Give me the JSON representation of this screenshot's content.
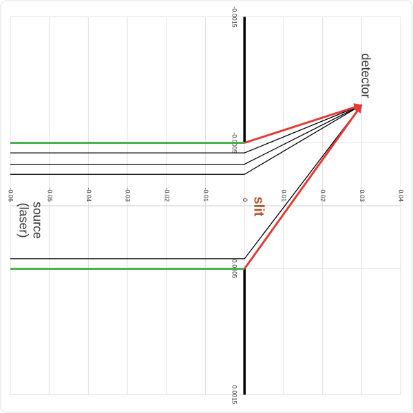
{
  "chart_data": {
    "type": "line",
    "xlim": [
      -0.0015,
      0.0015
    ],
    "xticks": [
      -0.0015,
      -0.0005,
      0.0005,
      0.0015
    ],
    "ylim": [
      -0.06,
      0.04
    ],
    "yticks": [
      -0.06,
      -0.05,
      -0.04,
      -0.03,
      -0.02,
      -0.01,
      0,
      0.01,
      0.02,
      0.03,
      0.04
    ],
    "grid": true,
    "annotations": {
      "detector": "detector",
      "slit": "slit",
      "source": [
        "source",
        "(laser)"
      ]
    },
    "series": [
      {
        "color": "#000000",
        "width": 3.5,
        "arrow": false,
        "x": [
          -0.0015,
          -0.0005
        ],
        "values": [
          0,
          0
        ]
      },
      {
        "color": "#000000",
        "width": 3.5,
        "arrow": false,
        "x": [
          0.0005,
          0.0015
        ],
        "values": [
          0,
          0
        ]
      },
      {
        "color": "#000000",
        "width": 1.3,
        "arrow": true,
        "x": [
          -0.00042,
          -0.00042,
          -0.0008
        ],
        "values": [
          -0.06,
          0,
          0.03
        ]
      },
      {
        "color": "#000000",
        "width": 1.3,
        "arrow": true,
        "x": [
          -0.00033,
          -0.00033,
          -0.0008
        ],
        "values": [
          -0.06,
          0,
          0.03
        ]
      },
      {
        "color": "#000000",
        "width": 1.3,
        "arrow": true,
        "x": [
          -0.00025,
          -0.00025,
          -0.0008
        ],
        "values": [
          -0.06,
          0,
          0.03
        ]
      },
      {
        "color": "#000000",
        "width": 1.3,
        "arrow": true,
        "x": [
          0.00042,
          0.00042,
          -0.0008
        ],
        "values": [
          -0.06,
          0,
          0.03
        ]
      },
      {
        "color": "#4caf50",
        "width": 3,
        "arrow": false,
        "x": [
          -0.0005,
          -0.0005
        ],
        "values": [
          -0.06,
          0
        ]
      },
      {
        "color": "#4caf50",
        "width": 3,
        "arrow": false,
        "x": [
          0.0005,
          0.0005
        ],
        "values": [
          -0.06,
          0
        ]
      },
      {
        "color": "#e53935",
        "width": 3,
        "arrow": true,
        "x": [
          -0.0005,
          -0.0008
        ],
        "values": [
          0,
          0.03
        ]
      },
      {
        "color": "#e53935",
        "width": 3,
        "arrow": true,
        "x": [
          0.0005,
          -0.0008
        ],
        "values": [
          0,
          0.03
        ]
      }
    ]
  }
}
